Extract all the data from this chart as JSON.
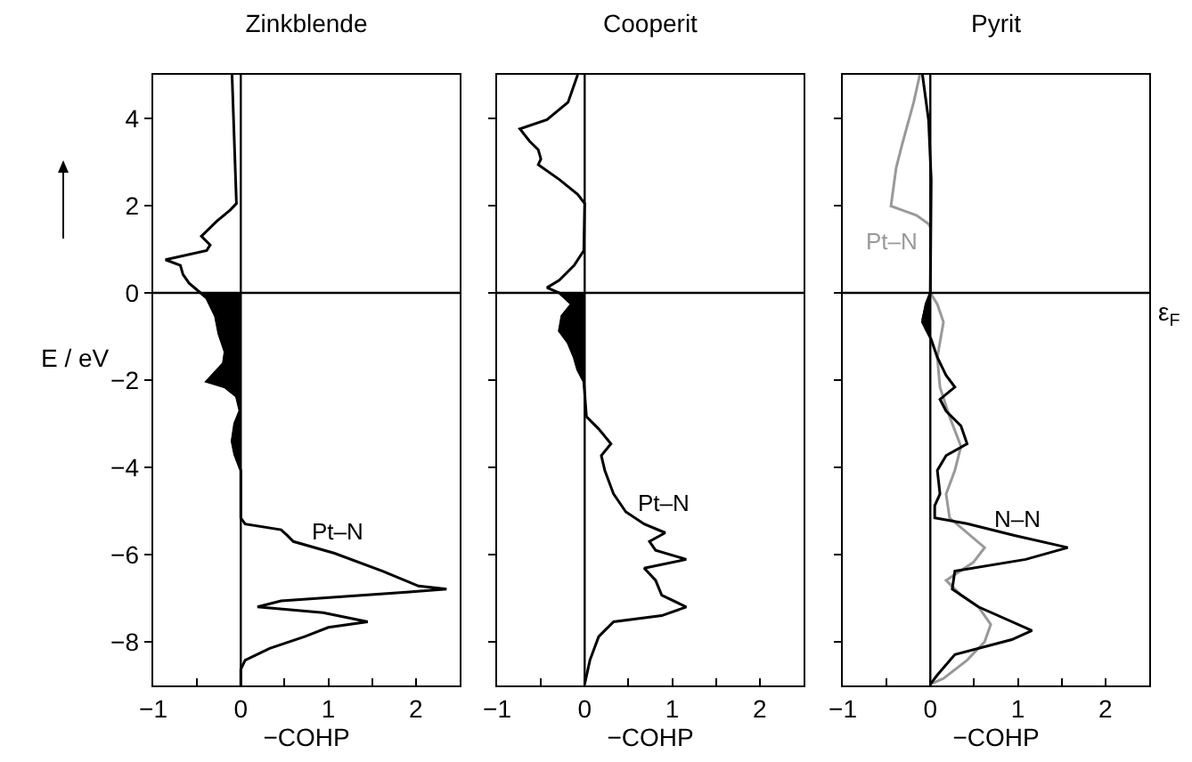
{
  "chart_data": [
    {
      "type": "line",
      "title": "Zinkblende",
      "xlabel": "−COHP",
      "ylabel": "E / eV",
      "xlim": [
        -1,
        2.5
      ],
      "xticks": [
        -1,
        {
          "value": -0.5,
          "label": null
        },
        0,
        {
          "value": 0.5,
          "label": null
        },
        1,
        {
          "value": 1.5,
          "label": null
        },
        2,
        {
          "value": 2.5,
          "label": null
        }
      ],
      "ylim": [
        -9,
        5
      ],
      "yticks": [
        -8,
        -6,
        -4,
        -2,
        0,
        2,
        4
      ],
      "grid": false,
      "legend": false,
      "ref_lines": [
        {
          "axis": "y",
          "value": 0
        },
        {
          "axis": "x",
          "value": 0
        }
      ],
      "series": [
        {
          "type": "area",
          "color": "#000000",
          "x": [
            0,
            -0.46,
            -0.39,
            -0.29,
            -0.25,
            -0.18,
            -0.2,
            -0.39,
            -0.18,
            -0.05,
            -0.01,
            -0.07,
            -0.1,
            -0.07,
            0
          ],
          "values": [
            0,
            0,
            -0.12,
            -0.53,
            -0.94,
            -1.35,
            -1.62,
            -2.03,
            -2.16,
            -2.37,
            -2.7,
            -3.0,
            -3.4,
            -3.7,
            -4.07
          ]
        },
        {
          "name": "Pt–N",
          "color": "#000000",
          "x": [
            -0.1,
            -0.05,
            -0.12,
            -0.27,
            -0.45,
            -0.35,
            -0.39,
            -0.86,
            -0.69,
            -0.66,
            -0.59,
            -0.46,
            -0.39,
            -0.29,
            -0.25,
            -0.18,
            -0.2,
            -0.39,
            -0.18,
            -0.05,
            -0.01,
            -0.07,
            -0.1,
            -0.07,
            0,
            0,
            0.05,
            0.46,
            0.53,
            0.6,
            1.07,
            1.62,
            2.03,
            2.35,
            1.89,
            0.46,
            0.19,
            0.94,
            1.45,
            1.0,
            0.73,
            0.33,
            0.05,
            0,
            0
          ],
          "values": [
            5,
            2.05,
            1.9,
            1.65,
            1.3,
            1.1,
            0.97,
            0.76,
            0.63,
            0.42,
            0.22,
            0,
            -0.12,
            -0.53,
            -0.94,
            -1.35,
            -1.62,
            -2.03,
            -2.16,
            -2.37,
            -2.7,
            -3.0,
            -3.4,
            -3.7,
            -4.07,
            -5.16,
            -5.3,
            -5.43,
            -5.56,
            -5.7,
            -5.97,
            -6.38,
            -6.72,
            -6.79,
            -6.86,
            -7.06,
            -7.2,
            -7.33,
            -7.54,
            -7.67,
            -7.88,
            -8.15,
            -8.42,
            -8.63,
            -9
          ]
        }
      ]
    },
    {
      "type": "line",
      "title": "Cooperit",
      "xlabel": "−COHP",
      "xlim": [
        -1,
        2.5
      ],
      "xticks": [
        -1,
        {
          "value": -0.5,
          "label": null
        },
        0,
        {
          "value": 0.5,
          "label": null
        },
        1,
        {
          "value": 1.5,
          "label": null
        },
        2,
        {
          "value": 2.5,
          "label": null
        }
      ],
      "ylim": [
        -9,
        5
      ],
      "yticks": [
        -8,
        -6,
        -4,
        -2,
        0,
        2,
        4
      ],
      "tick_labels": "x",
      "grid": false,
      "legend": false,
      "ref_lines": [
        {
          "axis": "y",
          "value": 0
        },
        {
          "axis": "x",
          "value": 0
        }
      ],
      "series": [
        {
          "type": "area",
          "color": "#000000",
          "x": [
            0,
            -0.29,
            -0.15,
            -0.26,
            -0.29,
            -0.19,
            -0.12,
            -0.08,
            -0.01,
            0
          ],
          "values": [
            0,
            0,
            -0.26,
            -0.53,
            -0.87,
            -1.14,
            -1.48,
            -1.76,
            -2.03,
            -2.3
          ]
        },
        {
          "name": "Pt–N",
          "color": "#000000",
          "x": [
            -0.08,
            -0.19,
            -0.43,
            -0.74,
            -0.63,
            -0.53,
            -0.5,
            -0.53,
            -0.29,
            -0.08,
            0,
            -0.01,
            -0.12,
            -0.29,
            -0.43,
            -0.29,
            -0.15,
            -0.26,
            -0.29,
            -0.19,
            -0.12,
            -0.08,
            -0.01,
            0,
            0.02,
            0.16,
            0.3,
            0.19,
            0.23,
            0.33,
            0.47,
            0.68,
            0.92,
            0.74,
            0.81,
            1.16,
            0.68,
            0.81,
            0.88,
            1.16,
            0.88,
            0.33,
            0.16,
            0.06,
            0
          ],
          "values": [
            5,
            4.37,
            3.97,
            3.76,
            3.48,
            3.28,
            3.07,
            2.94,
            2.6,
            2.26,
            2.05,
            0.97,
            0.63,
            0.29,
            0.12,
            0,
            -0.26,
            -0.53,
            -0.87,
            -1.14,
            -1.48,
            -1.76,
            -2.03,
            -2.3,
            -2.84,
            -3.12,
            -3.46,
            -3.73,
            -4.07,
            -4.61,
            -5.02,
            -5.3,
            -5.5,
            -5.7,
            -5.9,
            -6.11,
            -6.31,
            -6.59,
            -6.93,
            -7.2,
            -7.4,
            -7.54,
            -7.88,
            -8.42,
            -8.97
          ]
        }
      ]
    },
    {
      "type": "line",
      "title": "Pyrit",
      "xlabel": "−COHP",
      "xlim": [
        -1,
        2.5
      ],
      "xticks": [
        -1,
        {
          "value": -0.5,
          "label": null
        },
        0,
        {
          "value": 0.5,
          "label": null
        },
        1,
        {
          "value": 1.5,
          "label": null
        },
        2,
        {
          "value": 2.5,
          "label": null
        }
      ],
      "ylim": [
        -9,
        5
      ],
      "yticks": [
        -8,
        -6,
        -4,
        -2,
        0,
        2,
        4
      ],
      "tick_labels": "x",
      "grid": false,
      "legend": false,
      "ref_lines": [
        {
          "axis": "y",
          "value": 0,
          "label": "ε$_{F}$"
        },
        {
          "axis": "x",
          "value": 0
        }
      ],
      "series": [
        {
          "name": "Pt–N",
          "color": "#999999",
          "x": [
            -0.12,
            -0.19,
            -0.32,
            -0.39,
            -0.45,
            -0.16,
            -0.02,
            0,
            0,
            0.08,
            0.15,
            0.08,
            0.11,
            0.22,
            0.35,
            0.28,
            0.18,
            0.22,
            0.62,
            0.49,
            0.18,
            0.35,
            0.55,
            0.69,
            0.62,
            0.42,
            0.15,
            0
          ],
          "values": [
            5,
            4.37,
            3.42,
            2.87,
            1.99,
            1.78,
            1.58,
            1.5,
            0,
            -0.26,
            -0.67,
            -1.48,
            -2.16,
            -2.84,
            -3.52,
            -4.07,
            -4.61,
            -5.16,
            -5.84,
            -6.18,
            -6.59,
            -6.93,
            -7.2,
            -7.6,
            -8.0,
            -8.42,
            -8.84,
            -8.97
          ]
        },
        {
          "type": "area",
          "color": "#000000",
          "x": [
            0,
            -0.05,
            -0.09,
            -0.05,
            0
          ],
          "values": [
            0,
            -0.26,
            -0.6,
            -0.85,
            -1.0
          ]
        },
        {
          "name": "N–N",
          "color": "#000000",
          "x": [
            -0.09,
            -0.02,
            0.01,
            0,
            -0.05,
            -0.09,
            0.01,
            0.08,
            0.18,
            0.28,
            0.11,
            0.18,
            0.35,
            0.42,
            0.18,
            0.08,
            0.11,
            0.05,
            0.05,
            0.42,
            0.96,
            1.57,
            1.09,
            0.28,
            0.25,
            0.55,
            1.16,
            0.93,
            0.28,
            0.08,
            0
          ],
          "values": [
            5,
            3.96,
            2.6,
            0,
            -0.26,
            -0.67,
            -1.07,
            -1.48,
            -1.89,
            -2.16,
            -2.44,
            -2.71,
            -3.05,
            -3.46,
            -3.73,
            -4.07,
            -4.61,
            -4.88,
            -5.16,
            -5.29,
            -5.56,
            -5.84,
            -6.11,
            -6.38,
            -6.79,
            -7.2,
            -7.74,
            -7.95,
            -8.29,
            -8.76,
            -8.97
          ]
        }
      ]
    }
  ]
}
